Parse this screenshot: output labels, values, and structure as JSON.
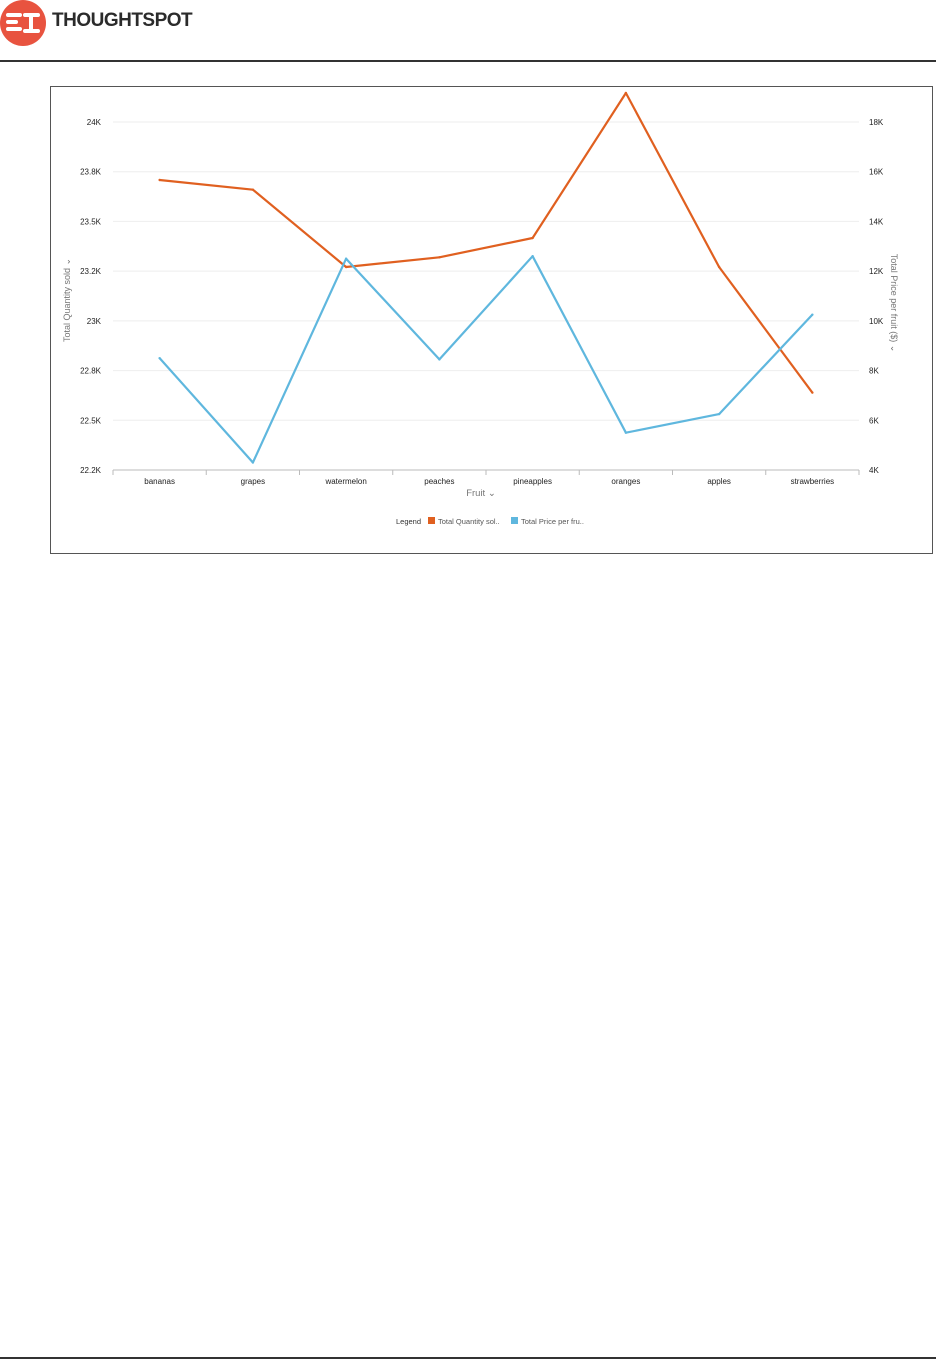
{
  "header": {
    "brand_name": "THOUGHTSPOT",
    "logo_icon": "thoughtspot-logo-icon",
    "logo_color": "#e8533f"
  },
  "chart_data": {
    "type": "line",
    "categories": [
      "bananas",
      "grapes",
      "watermelon",
      "peaches",
      "pineapples",
      "oranges",
      "apples",
      "strawberries"
    ],
    "xlabel": "Fruit",
    "ylabel_left": "Total Quantity sold",
    "ylabel_right": "Total Price per fruit ($)",
    "y_left_range": [
      22200,
      24000
    ],
    "y_right_range": [
      4000,
      18000
    ],
    "y_left_ticks": [
      "22.2K",
      "22.5K",
      "22.8K",
      "23K",
      "23.2K",
      "23.5K",
      "23.8K",
      "24K"
    ],
    "y_right_ticks": [
      "4K",
      "6K",
      "8K",
      "10K",
      "12K",
      "14K",
      "16K",
      "18K"
    ],
    "grid": true,
    "legend": {
      "title": "Legend",
      "placement": "bottom-center",
      "entries": [
        "Total Quantity sol..",
        "Total Price per fru.."
      ]
    },
    "series": [
      {
        "name": "Total Quantity sold",
        "axis": "left",
        "color": "#e06020",
        "values": [
          23700,
          23650,
          23250,
          23300,
          23400,
          24150,
          23250,
          22600
        ]
      },
      {
        "name": "Total Price per fruit ($)",
        "axis": "right",
        "color": "#5fb7de",
        "values": [
          8500,
          4300,
          12500,
          8450,
          12600,
          5500,
          6250,
          10250
        ]
      }
    ]
  }
}
